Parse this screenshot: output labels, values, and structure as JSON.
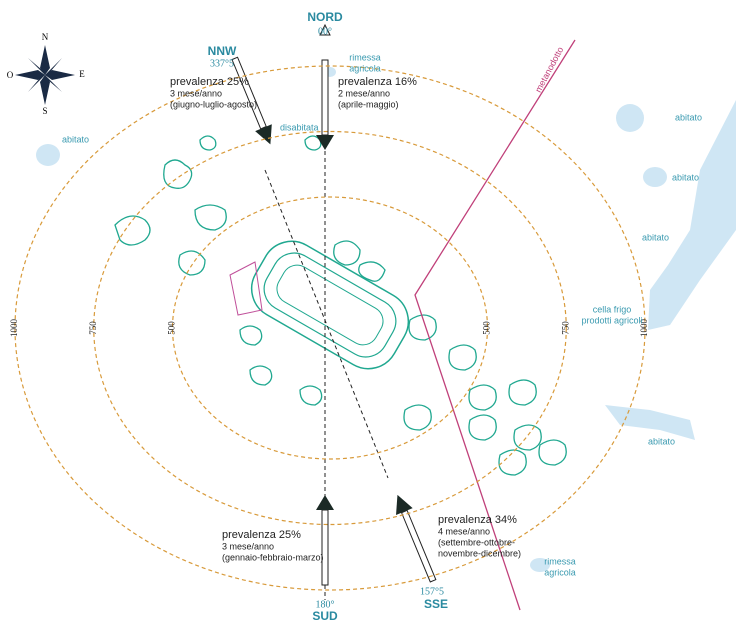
{
  "compass": {
    "n": "N",
    "s": "S",
    "e": "E",
    "w": "O"
  },
  "directions": [
    {
      "name": "NORD",
      "angle": "00°"
    },
    {
      "name": "NNW",
      "angle": "337°5"
    },
    {
      "name": "SUD",
      "angle": "180°"
    },
    {
      "name": "SSE",
      "angle": "157°5"
    }
  ],
  "winds": [
    {
      "share": "prevalenza 25%",
      "frequency": "3 mese/anno",
      "months": [
        "(giugno-luglio-agosto)"
      ]
    },
    {
      "share": "prevalenza 16%",
      "frequency": "2 mese/anno",
      "months": [
        "(aprile-maggio)"
      ]
    },
    {
      "share": "prevalenza 25%",
      "frequency": "3 mese/anno",
      "months": [
        "(gennaio-febbraio-marzo)"
      ]
    },
    {
      "share": "prevalenza 34%",
      "frequency": "4 mese/anno",
      "months": [
        "(settembre-ottobre-",
        "novembre-dicembre)"
      ]
    }
  ],
  "rings": [
    500,
    750,
    1000
  ],
  "places": [
    {
      "lines": [
        "rimessa",
        "agricola"
      ]
    },
    {
      "lines": [
        "disabitata"
      ]
    },
    {
      "lines": [
        "abitato"
      ]
    },
    {
      "lines": [
        "abitato"
      ]
    },
    {
      "lines": [
        "abitato"
      ]
    },
    {
      "lines": [
        "abitato"
      ]
    },
    {
      "lines": [
        "cella frigo",
        "prodotti agricoli"
      ]
    },
    {
      "lines": [
        "abitato"
      ]
    },
    {
      "lines": [
        "rimessa",
        "agricola"
      ]
    }
  ],
  "pipeline": "metanodotto"
}
